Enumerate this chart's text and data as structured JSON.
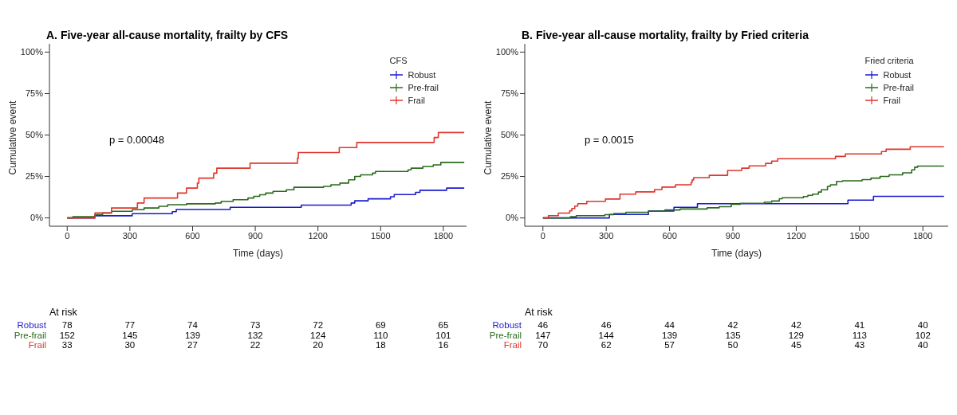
{
  "chart_data": [
    {
      "type": "step",
      "title": "A. Five-year all-cause mortality, frailty by CFS",
      "xlabel": "Time (days)",
      "ylabel": "Cumulative event",
      "legend_title": "CFS",
      "legend": "top right",
      "xlim": [
        -85,
        1911
      ],
      "ylim": [
        -5,
        105
      ],
      "xticks": [
        0,
        300,
        600,
        900,
        1200,
        1500,
        1800
      ],
      "yticks": [
        {
          "value": 0,
          "label": "0%"
        },
        {
          "value": 25,
          "label": "25%"
        },
        {
          "value": 50,
          "label": "50%"
        },
        {
          "value": 75,
          "label": "75%"
        },
        {
          "value": 100,
          "label": "100%"
        }
      ],
      "annotations": [
        "p = 0.00048",
        "At risk",
        "Robust",
        "78",
        "77",
        "74",
        "73",
        "72",
        "69",
        "65",
        "Pre-frail",
        "152",
        "145",
        "139",
        "132",
        "124",
        "110",
        "101",
        "Frail",
        "33",
        "30",
        "27",
        "22",
        "20",
        "18",
        "16"
      ],
      "series": [
        {
          "name": "Robust",
          "color": "#1a1ad0",
          "x": [
            0,
            133,
            311,
            503,
            522,
            780,
            1120,
            1359,
            1376,
            1440,
            1547,
            1565,
            1667,
            1688,
            1816,
            1900
          ],
          "values": [
            0,
            1.3,
            2.6,
            3.8,
            5.1,
            6.4,
            7.7,
            9,
            10.3,
            11.5,
            12.8,
            14.1,
            15.4,
            16.7,
            18,
            18
          ]
        },
        {
          "name": "Pre-frail",
          "color": "#2a6a1c",
          "x": [
            0,
            27,
            133,
            169,
            212,
            311,
            368,
            439,
            481,
            571,
            709,
            737,
            794,
            865,
            893,
            921,
            950,
            985,
            1049,
            1085,
            1227,
            1262,
            1305,
            1347,
            1376,
            1404,
            1461,
            1475,
            1631,
            1646,
            1702,
            1752,
            1788,
            1900
          ],
          "values": [
            0,
            0.7,
            2,
            3,
            4,
            5,
            6,
            7,
            8,
            8.5,
            9,
            10,
            11,
            12,
            13,
            14,
            15,
            16,
            17,
            18.5,
            19,
            20,
            21,
            23,
            25,
            26,
            27,
            28,
            29,
            30,
            31,
            32,
            33.5,
            33.5
          ]
        },
        {
          "name": "Frail",
          "color": "#e0352b",
          "x": [
            0,
            133,
            212,
            336,
            368,
            528,
            571,
            623,
            630,
            701,
            716,
            875,
            1102,
            1106,
            1302,
            1386,
            1756,
            1776,
            1900
          ],
          "values": [
            0,
            3,
            6,
            9,
            12,
            15,
            18,
            21,
            24,
            27,
            30,
            33,
            36,
            39.4,
            42.4,
            45.5,
            48.5,
            51.5,
            51.5
          ]
        }
      ]
    },
    {
      "type": "step",
      "title": "B. Five-year all-cause mortality, frailty by Fried criteria",
      "xlabel": "Time (days)",
      "ylabel": "Cumulative event",
      "legend_title": "Fried criteria",
      "legend": "top right",
      "xlim": [
        -86,
        1920
      ],
      "ylim": [
        -5,
        105
      ],
      "xticks": [
        0,
        300,
        600,
        900,
        1200,
        1500,
        1800
      ],
      "yticks": [
        {
          "value": 0,
          "label": "0%"
        },
        {
          "value": 25,
          "label": "25%"
        },
        {
          "value": 50,
          "label": "50%"
        },
        {
          "value": 75,
          "label": "75%"
        },
        {
          "value": 100,
          "label": "100%"
        }
      ],
      "annotations": [
        "p = 0.0015",
        "At risk",
        "Robust",
        "46",
        "46",
        "44",
        "42",
        "42",
        "41",
        "40",
        "Pre-frail",
        "147",
        "144",
        "139",
        "135",
        "129",
        "113",
        "102",
        "Frail",
        "70",
        "62",
        "57",
        "50",
        "45",
        "43",
        "40"
      ],
      "series": [
        {
          "name": "Robust",
          "color": "#1a1ad0",
          "x": [
            0,
            315,
            500,
            621,
            732,
            1445,
            1566,
            1900
          ],
          "values": [
            0,
            2.1,
            4.2,
            6.4,
            8.6,
            10.7,
            13,
            13
          ]
        },
        {
          "name": "Pre-frail",
          "color": "#2a6a1c",
          "x": [
            0,
            130,
            158,
            293,
            336,
            393,
            500,
            578,
            650,
            778,
            835,
            892,
            935,
            1049,
            1084,
            1120,
            1134,
            1234,
            1255,
            1277,
            1305,
            1319,
            1348,
            1362,
            1391,
            1419,
            1512,
            1554,
            1597,
            1640,
            1704,
            1747,
            1761,
            1775,
            1900
          ],
          "values": [
            0,
            0.7,
            1.4,
            2,
            2.7,
            3.4,
            4.1,
            4.8,
            5.4,
            6.1,
            6.8,
            8.2,
            8.8,
            9.5,
            10.2,
            11.6,
            12.2,
            12.9,
            13.6,
            14.3,
            15.6,
            17,
            19,
            20,
            22,
            22.4,
            23.1,
            24,
            25,
            26,
            27.2,
            29,
            30.6,
            31.3,
            31.3
          ]
        },
        {
          "name": "Frail",
          "color": "#e0352b",
          "x": [
            0,
            26,
            73,
            127,
            137,
            151,
            165,
            208,
            296,
            365,
            440,
            529,
            564,
            628,
            702,
            707,
            714,
            788,
            875,
            942,
            977,
            1055,
            1084,
            1112,
            1386,
            1433,
            1604,
            1626,
            1740,
            1900
          ],
          "values": [
            0,
            1.4,
            2.9,
            4.3,
            5.7,
            7.1,
            8.6,
            10,
            11.4,
            14.3,
            15.7,
            17.1,
            18.6,
            20,
            21.4,
            22.9,
            24.3,
            25.7,
            28.6,
            30,
            31.4,
            32.9,
            34.3,
            35.7,
            37.1,
            38.6,
            40,
            41.4,
            42.9,
            42.9
          ]
        }
      ]
    }
  ]
}
